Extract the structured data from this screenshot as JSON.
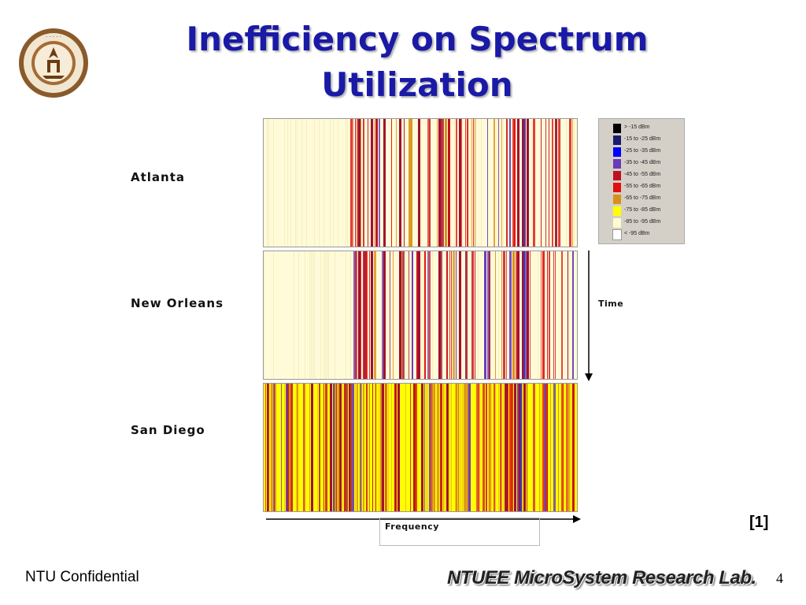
{
  "slide": {
    "title_line1": "Inefficiency on Spectrum",
    "title_line2": "Utilization",
    "reference": "[1]",
    "footer_left": "NTU Confidential",
    "footer_lab": "NTUEE MicroSystem Research Lab.",
    "page_number": "4"
  },
  "figure": {
    "cities": [
      "Atlanta",
      "New Orleans",
      "San Diego"
    ],
    "time_label": "Time",
    "frequency_label": "Frequency",
    "legend": [
      {
        "label": "> -15 dBm",
        "color": "#000000"
      },
      {
        "label": "-15 to -25 dBm",
        "color": "#1a1a6e"
      },
      {
        "label": "-25 to -35 dBm",
        "color": "#0000ff"
      },
      {
        "label": "-35 to -45 dBm",
        "color": "#6a3ab8"
      },
      {
        "label": "-45 to -55 dBm",
        "color": "#c01020"
      },
      {
        "label": "-55 to -65 dBm",
        "color": "#e01010"
      },
      {
        "label": "-65 to -75 dBm",
        "color": "#d89018"
      },
      {
        "label": "-75 to -85 dBm",
        "color": "#ffff00"
      },
      {
        "label": "-85 to -95 dBm",
        "color": "#fffbd0"
      },
      {
        "label": "< -95 dBm",
        "color": "#ffffff"
      }
    ]
  }
}
